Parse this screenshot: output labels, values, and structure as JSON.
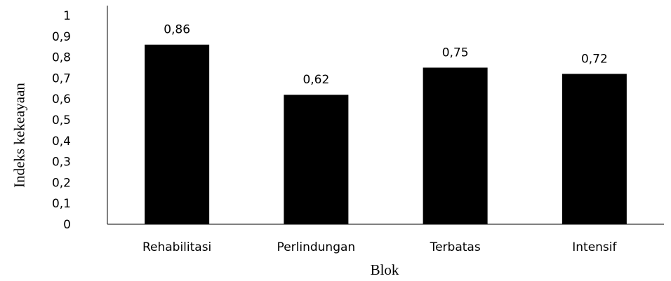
{
  "chart_data": {
    "type": "bar",
    "categories": [
      "Rehabilitasi",
      "Perlindungan",
      "Terbatas",
      "Intensif"
    ],
    "values": [
      0.86,
      0.62,
      0.75,
      0.72
    ],
    "data_labels": [
      "0,86",
      "0,62",
      "0,75",
      "0,72"
    ],
    "xlabel": "Blok",
    "ylabel": "Indeks kekeayaan",
    "ylim": [
      0,
      1
    ],
    "yticks": [
      0,
      0.1,
      0.2,
      0.3,
      0.4,
      0.5,
      0.6,
      0.7,
      0.8,
      0.9,
      1
    ],
    "ytick_labels": [
      "0",
      "0,1",
      "0,2",
      "0,3",
      "0,4",
      "0,5",
      "0,6",
      "0,7",
      "0,8",
      "0,9",
      "1"
    ],
    "grid": false,
    "legend": "none",
    "bar_color": "#000000"
  }
}
